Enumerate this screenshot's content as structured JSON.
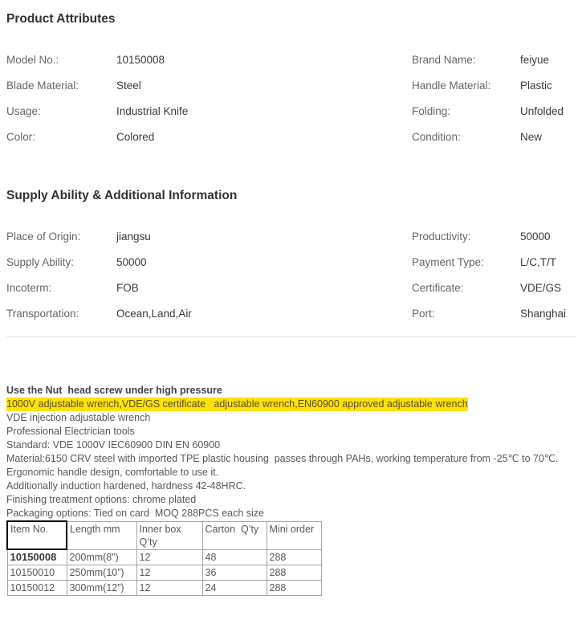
{
  "product_attributes": {
    "title": "Product Attributes",
    "rows": [
      {
        "l_label": "Model No.:",
        "l_value": "10150008",
        "r_label": "Brand Name:",
        "r_value": "feiyue"
      },
      {
        "l_label": "Blade Material:",
        "l_value": "Steel",
        "r_label": "Handle Material:",
        "r_value": "Plastic"
      },
      {
        "l_label": "Usage:",
        "l_value": "Industrial Knife",
        "r_label": "Folding:",
        "r_value": "Unfolded"
      },
      {
        "l_label": "Color:",
        "l_value": "Colored",
        "r_label": "Condition:",
        "r_value": "New"
      }
    ]
  },
  "supply_info": {
    "title": "Supply Ability & Additional Information",
    "rows": [
      {
        "l_label": "Place of Origin:",
        "l_value": "jiangsu",
        "r_label": "Productivity:",
        "r_value": "50000"
      },
      {
        "l_label": "Supply Ability:",
        "l_value": "50000",
        "r_label": "Payment Type:",
        "r_value": "L/C,T/T"
      },
      {
        "l_label": "Incoterm:",
        "l_value": "FOB",
        "r_label": "Certificate:",
        "r_value": "VDE/GS"
      },
      {
        "l_label": "Transportation:",
        "l_value": "Ocean,Land,Air",
        "r_label": "Port:",
        "r_value": "Shanghai"
      }
    ]
  },
  "description": {
    "bold_line": "Use the Nut  head screw under high pressure",
    "highlight_line": "1000V adjustable wrench,VDE/GS certificate   adjustable wrench,EN60900 approved adjustable wrench",
    "highlight_color": "#ffe105",
    "lines": [
      "VDE injection adjustable wrench",
      "Professional Electrician tools",
      "Standard: VDE 1000V IEC60900 DIN EN 60900",
      "Material:6150 CRV steel with imported TPE plastic housing  passes through PAHs, working temperature from -25℃ to 70℃.",
      "Ergonomic handle design, comfortable to use it.",
      "Additionally induction hardened, hardness 42-48HRC.",
      "Finishing treatment options: chrome plated",
      "Packaging options: Tied on card  MOQ 288PCS each size"
    ]
  },
  "size_table": {
    "headers": [
      "Item No.",
      "Length mm",
      "Inner box Q’ty",
      "Carton  Q’ty",
      "Mini order"
    ],
    "rows": [
      [
        "10150008",
        "200mm(8”)",
        "12",
        "48",
        "288"
      ],
      [
        "10150010",
        "250mm(10”)",
        "12",
        "36",
        "288"
      ],
      [
        "10150012",
        "300mm(12”)",
        "12",
        "24",
        "288"
      ]
    ]
  }
}
